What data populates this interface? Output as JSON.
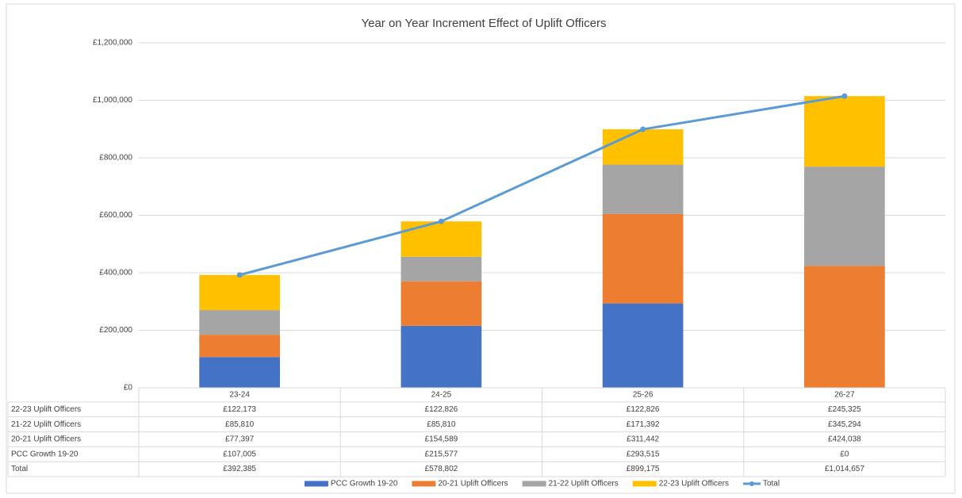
{
  "chart_data": {
    "type": "bar",
    "stacked": true,
    "title": "Year on Year Increment Effect of Uplift Officers",
    "categories": [
      "23-24",
      "24-25",
      "25-26",
      "26-27"
    ],
    "series": [
      {
        "name": "PCC Growth 19-20",
        "color": "#4472c4",
        "values": [
          107005,
          215577,
          293515,
          0
        ],
        "value_labels": [
          "£107,005",
          "£215,577",
          "£293,515",
          "£0"
        ]
      },
      {
        "name": "20-21 Uplift Officers",
        "color": "#ed7d31",
        "values": [
          77397,
          154589,
          311442,
          424038
        ],
        "value_labels": [
          "£77,397",
          "£154,589",
          "£311,442",
          "£424,038"
        ]
      },
      {
        "name": "21-22 Uplift Officers",
        "color": "#a5a5a5",
        "values": [
          85810,
          85810,
          171392,
          345294
        ],
        "value_labels": [
          "£85,810",
          "£85,810",
          "£171,392",
          "£345,294"
        ]
      },
      {
        "name": "22-23 Uplift Officers",
        "color": "#ffc000",
        "values": [
          122173,
          122826,
          122826,
          245325
        ],
        "value_labels": [
          "£122,173",
          "£122,826",
          "£122,826",
          "£245,325"
        ]
      },
      {
        "name": "Total",
        "color": "#5b9bd5",
        "type": "line",
        "values": [
          392385,
          578802,
          899175,
          1014657
        ],
        "value_labels": [
          "£392,385",
          "£578,802",
          "£899,175",
          "£1,014,657"
        ]
      }
    ],
    "ylim": [
      0,
      1200000
    ],
    "yticks": [
      {
        "value": 0,
        "label": "£0"
      },
      {
        "value": 200000,
        "label": "£200,000"
      },
      {
        "value": 400000,
        "label": "£400,000"
      },
      {
        "value": 600000,
        "label": "£600,000"
      },
      {
        "value": 800000,
        "label": "£800,000"
      },
      {
        "value": 1000000,
        "label": "£1,000,000"
      },
      {
        "value": 1200000,
        "label": "£1,200,000"
      }
    ],
    "grid": true,
    "legend": "bottom",
    "data_table": true
  }
}
